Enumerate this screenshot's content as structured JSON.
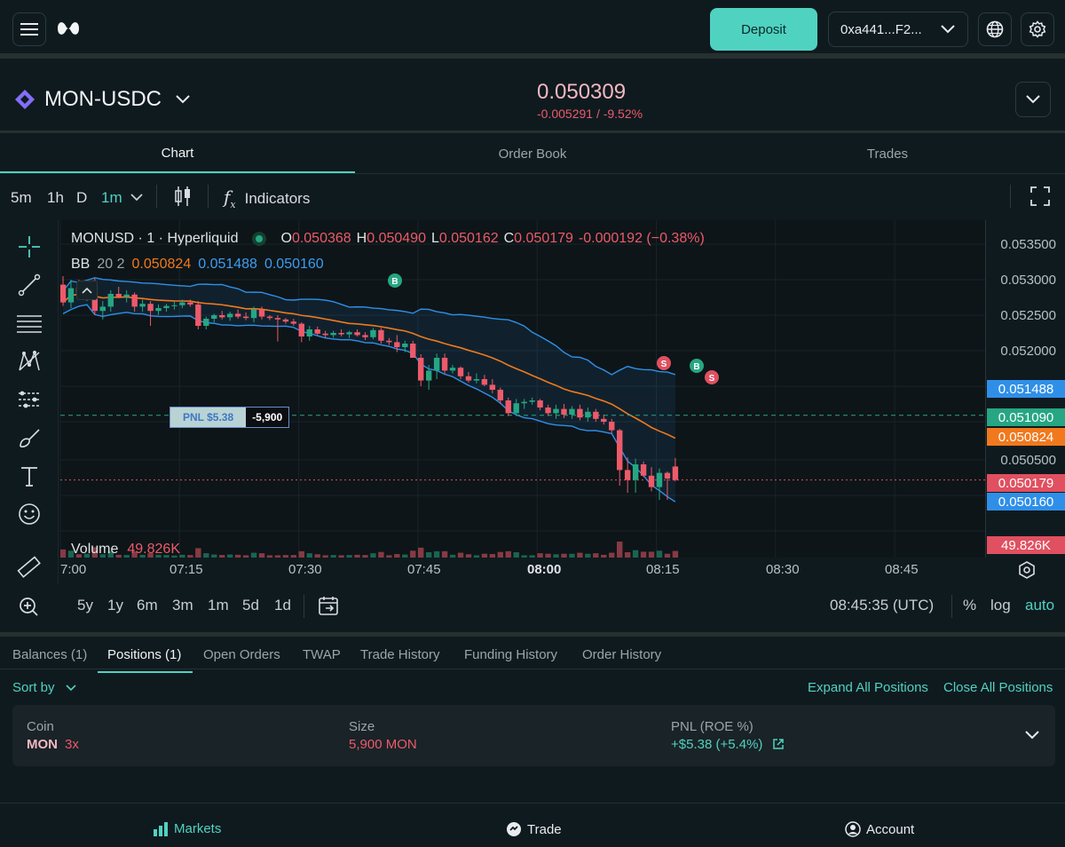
{
  "topbar": {
    "menu_icon": "hamburger-icon",
    "logo_icon": "hyperliquid-logo",
    "deposit_label": "Deposit",
    "wallet_label": "0xa441...F2...",
    "globe_icon": "globe-icon",
    "settings_icon": "gear-icon"
  },
  "market": {
    "pair": "MON-USDC",
    "price": "0.050309",
    "change": "-0.005291 / -9.52%"
  },
  "tabs": [
    "Chart",
    "Order Book",
    "Trades"
  ],
  "toolbar": {
    "intervals": [
      "5m",
      "1h",
      "D",
      "1m"
    ],
    "indicators_label": "Indicators"
  },
  "legend": {
    "symbol": "MONUSD · 1 · Hyperliquid",
    "o_label": "O",
    "o": "0.050368",
    "h_label": "H",
    "h": "0.050490",
    "l_label": "L",
    "l": "0.050162",
    "c_label": "C",
    "c": "0.050179",
    "chg": "-0.000192 (−0.38%)",
    "bb_label": "BB",
    "bb_params": "20 2",
    "bb_mid": "0.050824",
    "bb_up": "0.051488",
    "bb_low": "0.050160",
    "volume_label": "Volume",
    "volume_value": "49.826K"
  },
  "pnl_tag": {
    "label": "PNL $5.38",
    "size": "-5,900"
  },
  "markers": [
    "B",
    "S",
    "B",
    "S"
  ],
  "yaxis": {
    "ticks": [
      "0.053500",
      "0.053000",
      "0.052500",
      "0.052000",
      "0.050500"
    ],
    "tags": [
      {
        "value": "0.051488",
        "color": "#2f8fe8"
      },
      {
        "value": "0.051090",
        "color": "#26a683"
      },
      {
        "value": "0.050824",
        "color": "#f0791e"
      },
      {
        "value": "0.050179",
        "color": "#e05060"
      },
      {
        "value": "0.050160",
        "color": "#2f8fe8"
      },
      {
        "value": "49.826K",
        "color": "#e05060"
      }
    ]
  },
  "xaxis": [
    "7:00",
    "07:15",
    "07:30",
    "07:45",
    "08:00",
    "08:15",
    "08:30",
    "08:45"
  ],
  "rangebar": {
    "ranges": [
      "5y",
      "1y",
      "6m",
      "3m",
      "1m",
      "5d",
      "1d"
    ],
    "time": "08:45:35 (UTC)",
    "percent": "%",
    "log": "log",
    "auto": "auto"
  },
  "bottom_tabs": [
    "Balances (1)",
    "Positions (1)",
    "Open Orders",
    "TWAP",
    "Trade History",
    "Funding History",
    "Order History"
  ],
  "positions": {
    "sort_label": "Sort by",
    "expand_all": "Expand All Positions",
    "close_all": "Close All Positions",
    "coin_header": "Coin",
    "coin": "MON",
    "leverage": "3x",
    "size_header": "Size",
    "size": "5,900 MON",
    "pnl_header": "PNL (ROE %)",
    "pnl": "+$5.38 (+5.4%)"
  },
  "footer": {
    "markets": "Markets",
    "trade": "Trade",
    "account": "Account"
  },
  "colors": {
    "accent": "#50d2c1",
    "up": "#26a683",
    "down": "#ed5a6a",
    "bb_mid": "#f0791e",
    "bb_band": "#2f8fe8"
  },
  "chart_data": {
    "type": "candlestick",
    "x_unit": "minutes after 07:00 UTC",
    "candles": [
      {
        "o": 0.05293,
        "h": 0.05305,
        "l": 0.05263,
        "c": 0.05268
      },
      {
        "o": 0.05268,
        "h": 0.053,
        "l": 0.0526,
        "c": 0.05288
      },
      {
        "o": 0.05288,
        "h": 0.053,
        "l": 0.05275,
        "c": 0.05282
      },
      {
        "o": 0.05282,
        "h": 0.05298,
        "l": 0.0527,
        "c": 0.0529
      },
      {
        "o": 0.0529,
        "h": 0.05302,
        "l": 0.0525,
        "c": 0.05256
      },
      {
        "o": 0.05256,
        "h": 0.0527,
        "l": 0.05244,
        "c": 0.05262
      },
      {
        "o": 0.05262,
        "h": 0.05285,
        "l": 0.05255,
        "c": 0.0528
      },
      {
        "o": 0.0528,
        "h": 0.0529,
        "l": 0.05274,
        "c": 0.05276
      },
      {
        "o": 0.05276,
        "h": 0.05285,
        "l": 0.05268,
        "c": 0.05279
      },
      {
        "o": 0.05279,
        "h": 0.05282,
        "l": 0.05255,
        "c": 0.05262
      },
      {
        "o": 0.05262,
        "h": 0.05272,
        "l": 0.05255,
        "c": 0.05266
      },
      {
        "o": 0.05266,
        "h": 0.0527,
        "l": 0.05235,
        "c": 0.05256
      },
      {
        "o": 0.05256,
        "h": 0.05265,
        "l": 0.0525,
        "c": 0.0526
      },
      {
        "o": 0.0526,
        "h": 0.05266,
        "l": 0.05255,
        "c": 0.05263
      },
      {
        "o": 0.05263,
        "h": 0.0527,
        "l": 0.05258,
        "c": 0.05264
      },
      {
        "o": 0.05264,
        "h": 0.05272,
        "l": 0.0526,
        "c": 0.05268
      },
      {
        "o": 0.05268,
        "h": 0.05272,
        "l": 0.05262,
        "c": 0.05265
      },
      {
        "o": 0.05265,
        "h": 0.0527,
        "l": 0.0523,
        "c": 0.05235
      },
      {
        "o": 0.05235,
        "h": 0.05248,
        "l": 0.0523,
        "c": 0.05245
      },
      {
        "o": 0.05245,
        "h": 0.05252,
        "l": 0.0524,
        "c": 0.0525
      },
      {
        "o": 0.0525,
        "h": 0.05256,
        "l": 0.05244,
        "c": 0.05247
      },
      {
        "o": 0.05247,
        "h": 0.05255,
        "l": 0.05242,
        "c": 0.05252
      },
      {
        "o": 0.05252,
        "h": 0.05258,
        "l": 0.05245,
        "c": 0.05248
      },
      {
        "o": 0.05248,
        "h": 0.05254,
        "l": 0.05243,
        "c": 0.05246
      },
      {
        "o": 0.05246,
        "h": 0.05262,
        "l": 0.0524,
        "c": 0.05258
      },
      {
        "o": 0.05258,
        "h": 0.05262,
        "l": 0.05244,
        "c": 0.05248
      },
      {
        "o": 0.05248,
        "h": 0.0525,
        "l": 0.05243,
        "c": 0.05246
      },
      {
        "o": 0.05246,
        "h": 0.0525,
        "l": 0.05213,
        "c": 0.05244
      },
      {
        "o": 0.05244,
        "h": 0.05246,
        "l": 0.05238,
        "c": 0.05241
      },
      {
        "o": 0.05241,
        "h": 0.05245,
        "l": 0.05235,
        "c": 0.05238
      },
      {
        "o": 0.05238,
        "h": 0.0524,
        "l": 0.05212,
        "c": 0.0522
      },
      {
        "o": 0.0522,
        "h": 0.05235,
        "l": 0.05214,
        "c": 0.0523
      },
      {
        "o": 0.0523,
        "h": 0.05234,
        "l": 0.05222,
        "c": 0.05224
      },
      {
        "o": 0.05224,
        "h": 0.05228,
        "l": 0.05218,
        "c": 0.05222
      },
      {
        "o": 0.05222,
        "h": 0.05228,
        "l": 0.05218,
        "c": 0.05225
      },
      {
        "o": 0.05225,
        "h": 0.0523,
        "l": 0.0522,
        "c": 0.05223
      },
      {
        "o": 0.05223,
        "h": 0.05228,
        "l": 0.05218,
        "c": 0.05226
      },
      {
        "o": 0.05226,
        "h": 0.0523,
        "l": 0.0522,
        "c": 0.05222
      },
      {
        "o": 0.05222,
        "h": 0.05226,
        "l": 0.05215,
        "c": 0.05219
      },
      {
        "o": 0.05219,
        "h": 0.05232,
        "l": 0.05216,
        "c": 0.05229
      },
      {
        "o": 0.05229,
        "h": 0.05232,
        "l": 0.0521,
        "c": 0.05214
      },
      {
        "o": 0.05214,
        "h": 0.05218,
        "l": 0.05208,
        "c": 0.05212
      },
      {
        "o": 0.05212,
        "h": 0.05222,
        "l": 0.05198,
        "c": 0.05205
      },
      {
        "o": 0.05205,
        "h": 0.05214,
        "l": 0.05198,
        "c": 0.0521
      },
      {
        "o": 0.0521,
        "h": 0.05214,
        "l": 0.0519,
        "c": 0.0519
      },
      {
        "o": 0.0519,
        "h": 0.05195,
        "l": 0.0515,
        "c": 0.05158
      },
      {
        "o": 0.05158,
        "h": 0.0518,
        "l": 0.05145,
        "c": 0.05172
      },
      {
        "o": 0.05172,
        "h": 0.05196,
        "l": 0.0516,
        "c": 0.0519
      },
      {
        "o": 0.0519,
        "h": 0.05196,
        "l": 0.05168,
        "c": 0.05172
      },
      {
        "o": 0.05172,
        "h": 0.0518,
        "l": 0.05168,
        "c": 0.05176
      },
      {
        "o": 0.05176,
        "h": 0.05178,
        "l": 0.0516,
        "c": 0.05164
      },
      {
        "o": 0.05164,
        "h": 0.0517,
        "l": 0.05155,
        "c": 0.05158
      },
      {
        "o": 0.05158,
        "h": 0.05168,
        "l": 0.05154,
        "c": 0.0516
      },
      {
        "o": 0.0516,
        "h": 0.05166,
        "l": 0.0515,
        "c": 0.05152
      },
      {
        "o": 0.05152,
        "h": 0.0516,
        "l": 0.0514,
        "c": 0.05145
      },
      {
        "o": 0.05145,
        "h": 0.05148,
        "l": 0.05125,
        "c": 0.0513
      },
      {
        "o": 0.0513,
        "h": 0.05134,
        "l": 0.05108,
        "c": 0.05112
      },
      {
        "o": 0.05112,
        "h": 0.05132,
        "l": 0.05108,
        "c": 0.05126
      },
      {
        "o": 0.05126,
        "h": 0.05132,
        "l": 0.05118,
        "c": 0.05128
      },
      {
        "o": 0.05128,
        "h": 0.05134,
        "l": 0.05124,
        "c": 0.0513
      },
      {
        "o": 0.0513,
        "h": 0.05132,
        "l": 0.05116,
        "c": 0.0512
      },
      {
        "o": 0.0512,
        "h": 0.05124,
        "l": 0.05108,
        "c": 0.05112
      },
      {
        "o": 0.05112,
        "h": 0.05124,
        "l": 0.05104,
        "c": 0.05118
      },
      {
        "o": 0.05118,
        "h": 0.05125,
        "l": 0.05105,
        "c": 0.0511
      },
      {
        "o": 0.0511,
        "h": 0.05122,
        "l": 0.05104,
        "c": 0.05118
      },
      {
        "o": 0.05118,
        "h": 0.05124,
        "l": 0.05102,
        "c": 0.05106
      },
      {
        "o": 0.05106,
        "h": 0.0512,
        "l": 0.051,
        "c": 0.05114
      },
      {
        "o": 0.05114,
        "h": 0.05118,
        "l": 0.051,
        "c": 0.05104
      },
      {
        "o": 0.05104,
        "h": 0.0511,
        "l": 0.05096,
        "c": 0.051
      },
      {
        "o": 0.051,
        "h": 0.05104,
        "l": 0.05084,
        "c": 0.05088
      },
      {
        "o": 0.05088,
        "h": 0.0509,
        "l": 0.0501,
        "c": 0.05032
      },
      {
        "o": 0.05032,
        "h": 0.0505,
        "l": 0.05,
        "c": 0.05018
      },
      {
        "o": 0.05018,
        "h": 0.05048,
        "l": 0.05,
        "c": 0.0504
      },
      {
        "o": 0.0504,
        "h": 0.05044,
        "l": 0.05022,
        "c": 0.05024
      },
      {
        "o": 0.05024,
        "h": 0.05036,
        "l": 0.05002,
        "c": 0.05008
      },
      {
        "o": 0.05008,
        "h": 0.05034,
        "l": 0.0499,
        "c": 0.05028
      },
      {
        "o": 0.05028,
        "h": 0.0503,
        "l": 0.0499,
        "c": 0.0502
      },
      {
        "o": 0.05037,
        "h": 0.05049,
        "l": 0.05016,
        "c": 0.05018
      }
    ],
    "volume_last": "49.826K",
    "ylim": [
      0.04965,
      0.05372
    ],
    "xlabel": "",
    "ylabel": ""
  }
}
